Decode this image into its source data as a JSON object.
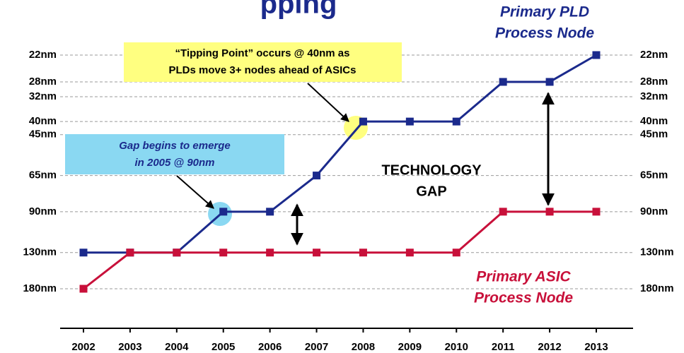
{
  "chart_data": {
    "type": "line",
    "title": "pping",
    "categories": [
      "2002",
      "2003",
      "2004",
      "2005",
      "2006",
      "2007",
      "2008",
      "2009",
      "2010",
      "2011",
      "2012",
      "2013"
    ],
    "series": [
      {
        "name": "Primary PLD Process Node",
        "label_lines": [
          "Primary PLD",
          "Process Node"
        ],
        "color": "#1b2a8c",
        "values": [
          130,
          130,
          130,
          90,
          90,
          65,
          40,
          40,
          40,
          28,
          28,
          22
        ]
      },
      {
        "name": "Primary ASIC Process Node",
        "label_lines": [
          "Primary ASIC",
          "Process Node"
        ],
        "color": "#c8103a",
        "values": [
          180,
          130,
          130,
          130,
          130,
          130,
          130,
          130,
          130,
          90,
          90,
          90
        ]
      }
    ],
    "ylim": [
      22,
      180
    ],
    "y_log": true,
    "y_inverted": true,
    "yticks": [
      {
        "value": 22,
        "label": "22nm"
      },
      {
        "value": 28,
        "label": "28nm"
      },
      {
        "value": 32,
        "label": "32nm"
      },
      {
        "value": 40,
        "label": "40nm"
      },
      {
        "value": 45,
        "label": "45nm"
      },
      {
        "value": 65,
        "label": "65nm"
      },
      {
        "value": 90,
        "label": "90nm"
      },
      {
        "value": 130,
        "label": "130nm"
      },
      {
        "value": 180,
        "label": "180nm"
      }
    ],
    "grid": true,
    "annotations": {
      "tipping": [
        "“Tipping Point” occurs @ 40nm as",
        "PLDs move 3+ nodes ahead of ASICs"
      ],
      "gap_begins": [
        "Gap begins to emerge",
        "in 2005 @ 90nm"
      ],
      "technology_gap": [
        "TECHNOLOGY",
        "GAP"
      ]
    }
  }
}
